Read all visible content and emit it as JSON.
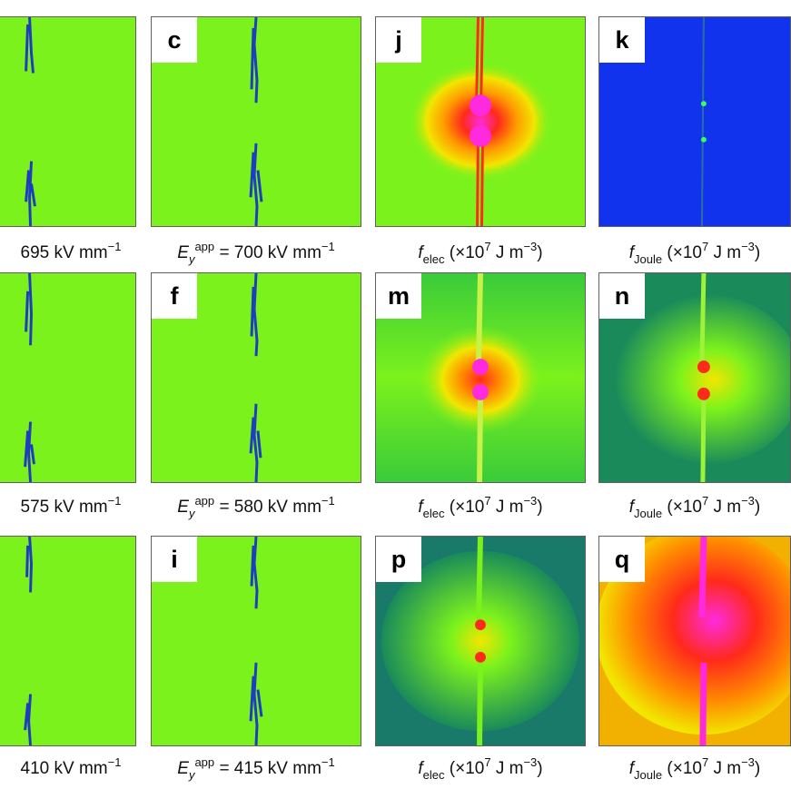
{
  "figure": {
    "columns": [
      {
        "id": "col1",
        "kind": "field"
      },
      {
        "id": "col2",
        "kind": "field"
      },
      {
        "id": "col3",
        "kind": "elec"
      },
      {
        "id": "col4",
        "kind": "joule"
      }
    ],
    "rows": [
      {
        "panels": [
          {
            "label": "",
            "caption_value": "695",
            "caption_unit": "kV mm",
            "caption_exp": "−1"
          },
          {
            "label": "c",
            "caption_prefix": "= 700",
            "caption_unit": "kV mm",
            "caption_exp": "−1"
          },
          {
            "label": "j"
          },
          {
            "label": "k"
          }
        ]
      },
      {
        "panels": [
          {
            "label": "",
            "caption_value": "575",
            "caption_unit": "kV mm",
            "caption_exp": "−1"
          },
          {
            "label": "f",
            "caption_prefix": "= 580",
            "caption_unit": "kV mm",
            "caption_exp": "−1"
          },
          {
            "label": "m"
          },
          {
            "label": "n"
          }
        ]
      },
      {
        "panels": [
          {
            "label": "",
            "caption_value": "410",
            "caption_unit": "kV mm",
            "caption_exp": "−1"
          },
          {
            "label": "i",
            "caption_prefix": "= 415",
            "caption_unit": "kV mm",
            "caption_exp": "−1"
          },
          {
            "label": "p"
          },
          {
            "label": "q"
          }
        ]
      }
    ],
    "field_symbol": "E",
    "field_sub": "y",
    "field_sup": "app",
    "elec": {
      "f": "f",
      "sub": "elec",
      "open": "(×10",
      "exp": "7",
      "units": " J m",
      "uexp": "−3",
      "close": ")"
    },
    "joule": {
      "f": "f",
      "sub": "Joule",
      "open": "(×10",
      "exp": "7",
      "units": " J m",
      "uexp": "−3",
      "close": ")"
    },
    "colors": {
      "green": "#7cf21c",
      "tree": "#1d3fbf",
      "blue": "#1133ee",
      "teal": "#1a8a5a",
      "yellow": "#f2e600",
      "red": "#ff2a1a",
      "magenta": "#ff2adf",
      "orange": "#ff8a00"
    }
  }
}
